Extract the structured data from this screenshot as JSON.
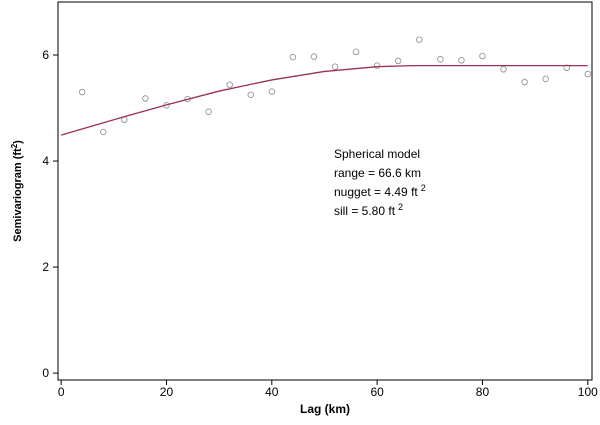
{
  "chart_data": {
    "type": "scatter",
    "x_label": "Lag (km)",
    "y_label": [
      "Semivariogram (ft",
      "2",
      ")"
    ],
    "xlim": [
      -0.6,
      100.8
    ],
    "ylim": [
      -0.13,
      7
    ],
    "xticks": [
      0,
      20,
      40,
      60,
      80,
      100
    ],
    "yticks": [
      0,
      2,
      4,
      6
    ],
    "annotations": [
      [
        "Spherical model"
      ],
      [
        "range = 66.6 km"
      ],
      [
        "nugget = 4.49 ft",
        "2"
      ],
      [
        "sill = 5.80 ft",
        "2"
      ]
    ],
    "series": [
      {
        "kind": "points",
        "color": "#8a8a8a",
        "x": [
          4,
          8,
          12,
          16,
          20,
          24,
          28,
          32,
          36,
          40,
          44,
          48,
          52,
          56,
          60,
          64,
          68,
          72,
          76,
          80,
          84,
          88,
          92,
          96,
          100
        ],
        "values": [
          5.3,
          4.55,
          4.78,
          5.18,
          5.05,
          5.17,
          4.93,
          5.44,
          5.25,
          5.31,
          5.96,
          5.97,
          5.78,
          6.06,
          5.8,
          5.89,
          6.29,
          5.92,
          5.9,
          5.98,
          5.73,
          5.49,
          5.55,
          5.76,
          5.64
        ]
      },
      {
        "kind": "line",
        "color": "#9b2f5e",
        "x": [
          0,
          10,
          20,
          30,
          40,
          50,
          60,
          66.6,
          100
        ],
        "values": [
          4.49,
          4.78,
          5.06,
          5.32,
          5.53,
          5.69,
          5.78,
          5.8,
          5.8
        ]
      }
    ]
  }
}
